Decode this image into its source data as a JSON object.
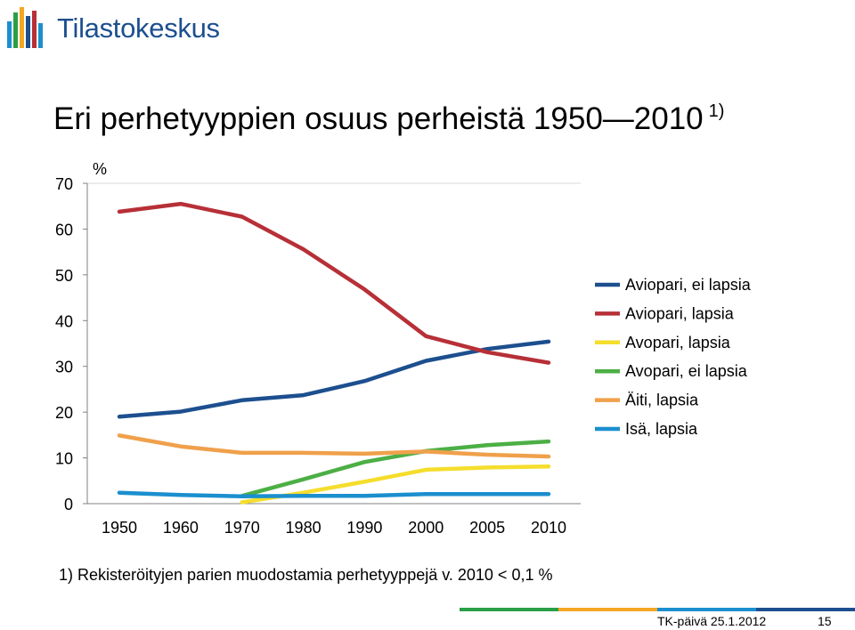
{
  "logo": {
    "name": "Tilastokeskus"
  },
  "slide": {
    "title": "Eri perhetyyppien osuus perheistä 1950—2010",
    "title_note": "1)",
    "footnote": "1) Rekisteröityjen parien muodostamia perhetyyppejä v. 2010 < 0,1 %",
    "footer_text": "TK-päivä 25.1.2012",
    "page_number": "15",
    "footer_colors": [
      "#2a9f48",
      "#f5a623",
      "#1b8fce",
      "#1d4f8f"
    ]
  },
  "chart_data": {
    "type": "line",
    "ylabel": "%",
    "ylim": [
      0,
      70
    ],
    "yticks": [
      "0",
      "10",
      "20",
      "30",
      "40",
      "50",
      "60",
      "70"
    ],
    "categories": [
      "1950",
      "1960",
      "1970",
      "1980",
      "1990",
      "2000",
      "2005",
      "2010"
    ],
    "grid": "horizontal",
    "legend_position": "right",
    "series": [
      {
        "name": "Aviopari, ei lapsia",
        "color": "#1d4f8f",
        "values": [
          19.0,
          20.1,
          22.6,
          23.7,
          26.8,
          31.2,
          33.8,
          35.4
        ]
      },
      {
        "name": "Aviopari, lapsia",
        "color": "#b73037",
        "values": [
          63.8,
          65.5,
          62.7,
          55.6,
          46.8,
          36.6,
          33.1,
          30.8
        ]
      },
      {
        "name": "Avopari, lapsia",
        "color": "#f5dd2c",
        "values": [
          null,
          null,
          0.3,
          2.4,
          4.8,
          7.4,
          7.9,
          8.1
        ]
      },
      {
        "name": "Avopari, ei lapsia",
        "color": "#4caf45",
        "values": [
          null,
          null,
          1.7,
          5.3,
          9.1,
          11.5,
          12.8,
          13.6
        ]
      },
      {
        "name": "Äiti, lapsia",
        "color": "#f0a04b",
        "values": [
          14.9,
          12.5,
          11.1,
          11.1,
          10.9,
          11.4,
          10.7,
          10.3
        ]
      },
      {
        "name": "Isä, lapsia",
        "color": "#1b8fce",
        "values": [
          2.4,
          1.9,
          1.6,
          1.7,
          1.7,
          2.1,
          2.1,
          2.1
        ]
      }
    ]
  }
}
